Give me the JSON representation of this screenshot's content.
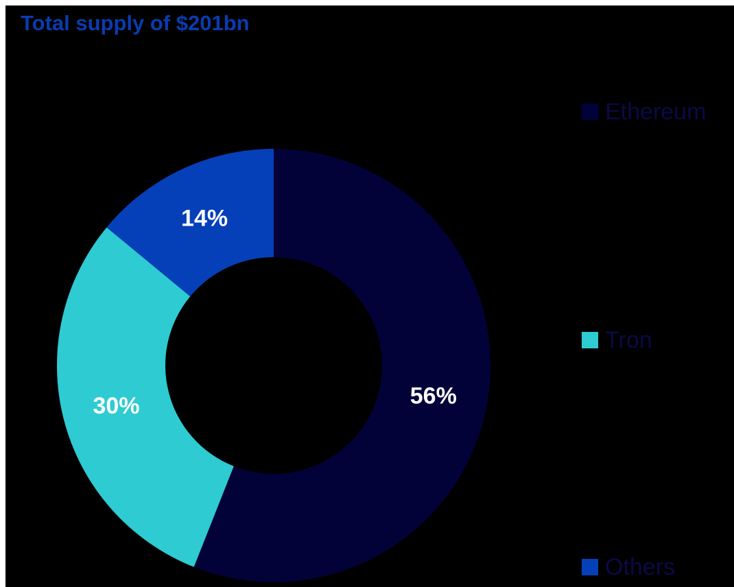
{
  "chart_data": {
    "type": "pie",
    "title": "Total supply of $201bn",
    "donut": true,
    "categories": [
      "Ethereum",
      "Tron",
      "Others"
    ],
    "values": [
      56,
      30,
      14
    ],
    "data_labels": [
      "56%",
      "30%",
      "14%"
    ],
    "colors": [
      "#020238",
      "#2ecbd2",
      "#0540b9"
    ],
    "legend_position": "right"
  },
  "colors": {
    "background": "#000000",
    "title": "#0a3bb0",
    "label_text": "#ffffff",
    "legend_text": "#0a0a45"
  }
}
